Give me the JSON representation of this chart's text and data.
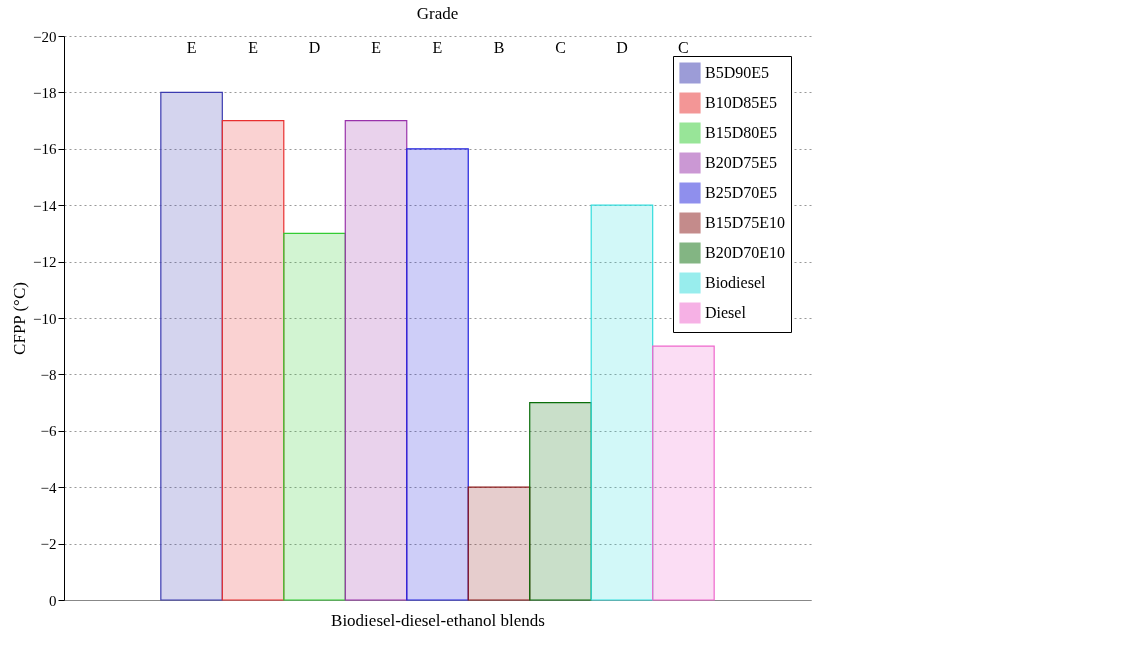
{
  "chart_data": {
    "type": "bar",
    "title": "Grade",
    "xlabel": "Biodiesel-diesel-ethanol blends",
    "ylabel": "CFPP (°C)",
    "categories": [
      null
    ],
    "series": [
      {
        "name": "B5D90E5",
        "color": "#3b3bb0",
        "values": [
          -18
        ]
      },
      {
        "name": "B10D85E5",
        "color": "#e83030",
        "values": [
          -17
        ]
      },
      {
        "name": "B15D80E5",
        "color": "#33cc33",
        "values": [
          -13
        ]
      },
      {
        "name": "B20D75E5",
        "color": "#9933aa",
        "values": [
          -17
        ]
      },
      {
        "name": "B25D70E5",
        "color": "#2222dd",
        "values": [
          -16
        ]
      },
      {
        "name": "B15D75E10",
        "color": "#8b1a1a",
        "values": [
          -4
        ]
      },
      {
        "name": "B20D70E10",
        "color": "#0a6e0a",
        "values": [
          -7
        ]
      },
      {
        "name": "Biodiesel",
        "color": "#33dddd",
        "values": [
          -14
        ]
      },
      {
        "name": "Diesel",
        "color": "#ee66cc",
        "values": [
          -9
        ]
      }
    ],
    "annotations": [
      "E",
      "E",
      "D",
      "E",
      "E",
      "B",
      "C",
      "D",
      "C"
    ],
    "ylim": [
      0,
      -20
    ],
    "yticks": [
      0,
      -2,
      -4,
      -6,
      -8,
      -10,
      -12,
      -14,
      -16,
      -18,
      -20
    ],
    "grid": "y",
    "legend": "top right"
  }
}
